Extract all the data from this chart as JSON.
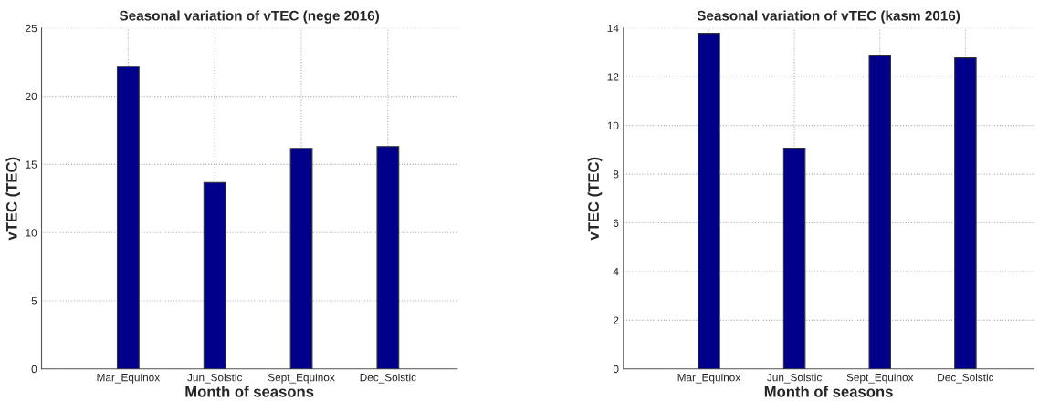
{
  "chart_data": [
    {
      "type": "bar",
      "title": "Seasonal variation of vTEC (nege 2016)",
      "xlabel": "Month of seasons",
      "ylabel": "vTEC (TEC)",
      "categories": [
        "Mar_Equinox",
        "Jun_Solstic",
        "Sept_Equinox",
        "Dec_Solstic"
      ],
      "values": [
        22.2,
        13.67,
        16.18,
        16.31
      ],
      "color": "#00008b",
      "ylim": [
        0,
        25
      ],
      "yticks": [
        0,
        5,
        10,
        15,
        20,
        25
      ],
      "grid": true
    },
    {
      "type": "bar",
      "title": "Seasonal variation of vTEC (kasm 2016)",
      "xlabel": "Month of seasons",
      "ylabel": "vTEC (TEC)",
      "categories": [
        "Mar_Equinox",
        "Jun_Solstic",
        "Sept_Equinox",
        "Dec_Solstic"
      ],
      "values": [
        13.78,
        9.07,
        12.89,
        12.77
      ],
      "color": "#00008b",
      "ylim": [
        0,
        14
      ],
      "yticks": [
        0,
        2,
        4,
        6,
        8,
        10,
        12,
        14
      ],
      "grid": true
    }
  ]
}
